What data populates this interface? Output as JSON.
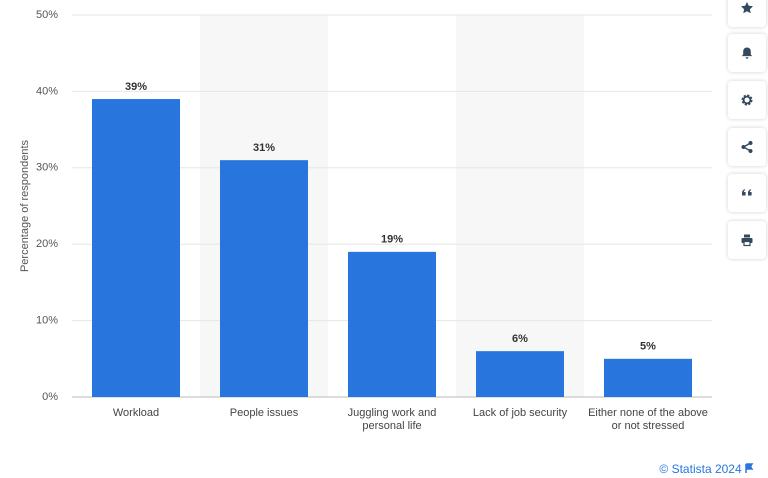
{
  "chart_data": {
    "type": "bar",
    "y_label": "Percentage of respondents",
    "categories": [
      "Workload",
      "People issues",
      "Juggling work and personal life",
      "Lack of job security",
      "Either none of the above or not stressed"
    ],
    "values": [
      39,
      31,
      19,
      6,
      5
    ],
    "value_labels": [
      "39%",
      "31%",
      "19%",
      "6%",
      "5%"
    ],
    "color": "#2876dd",
    "ylim": [
      0,
      50
    ],
    "yticks": [
      {
        "value": 0,
        "label": "0%"
      },
      {
        "value": 10,
        "label": "10%"
      },
      {
        "value": 20,
        "label": "20%"
      },
      {
        "value": 30,
        "label": "30%"
      },
      {
        "value": 40,
        "label": "40%"
      },
      {
        "value": 50,
        "label": "50%"
      }
    ],
    "grid": true
  },
  "footer": {
    "source": "© Statista 2024"
  }
}
